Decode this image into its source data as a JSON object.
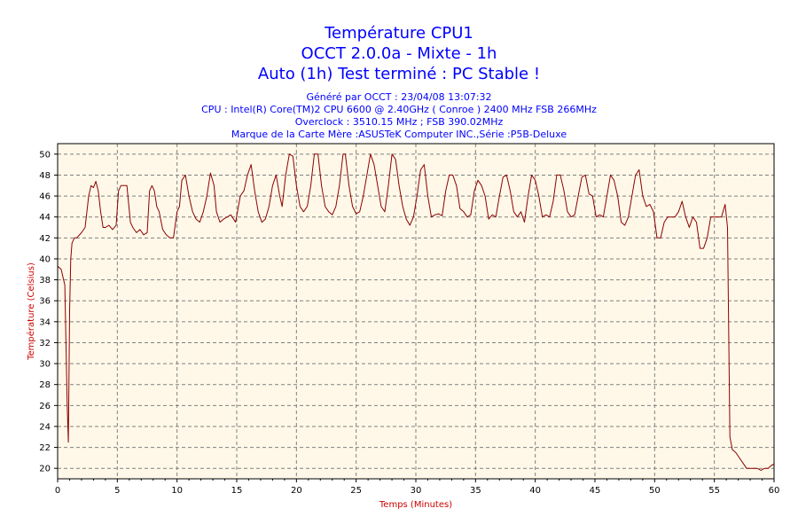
{
  "titles": [
    "Température CPU1",
    "OCCT 2.0.0a - Mixte - 1h",
    "Auto (1h) Test terminé : PC Stable !"
  ],
  "info": [
    "Généré par OCCT : 23/04/08 13:07:32",
    "CPU : Intel(R) Core(TM)2 CPU 6600 @ 2.40GHz ( Conroe ) 2400 MHz FSB 266MHz",
    "Overclock : 3510.15 MHz ; FSB 390.02MHz",
    "Marque de la Carte Mère :ASUSTeK Computer INC.,Série :P5B-Deluxe"
  ],
  "colors": {
    "title": "#0000ff",
    "plot_bg": "#fff8e8",
    "line": "#8b0000",
    "axis_label": "#cc0000",
    "grid": "#808080"
  },
  "chart_data": {
    "type": "line",
    "xlabel": "Temps (Minutes)",
    "ylabel": "Température (Celsius)",
    "xlim": [
      0,
      60
    ],
    "ylim": [
      19,
      51
    ],
    "xticks": [
      0,
      5,
      10,
      15,
      20,
      25,
      30,
      35,
      40,
      45,
      50,
      55,
      60
    ],
    "yticks": [
      20,
      22,
      24,
      26,
      28,
      30,
      32,
      34,
      36,
      38,
      40,
      42,
      44,
      46,
      48,
      50
    ],
    "grid": true,
    "series": [
      {
        "x": [
          0,
          0.3,
          0.6,
          0.8,
          0.9,
          1.0,
          1.1,
          1.2,
          1.4,
          1.6,
          2.0,
          2.3,
          2.6,
          2.8,
          3.0,
          3.2,
          3.4,
          3.6,
          3.8,
          4.0,
          4.3,
          4.6,
          4.9,
          5.1,
          5.3,
          5.5,
          5.8,
          6.1,
          6.3,
          6.6,
          6.9,
          7.2,
          7.5,
          7.7,
          7.9,
          8.1,
          8.3,
          8.5,
          8.8,
          9.1,
          9.4,
          9.7,
          10.0,
          10.2,
          10.4,
          10.7,
          11.0,
          11.3,
          11.6,
          11.9,
          12.2,
          12.5,
          12.8,
          13.1,
          13.3,
          13.6,
          13.9,
          14.2,
          14.5,
          14.9,
          15.3,
          15.6,
          15.9,
          16.2,
          16.5,
          16.8,
          17.1,
          17.4,
          17.7,
          18.0,
          18.3,
          18.6,
          18.8,
          19.1,
          19.4,
          19.7,
          20.0,
          20.3,
          20.6,
          20.9,
          21.2,
          21.5,
          21.8,
          22.1,
          22.4,
          22.7,
          23.0,
          23.3,
          23.6,
          23.9,
          24.1,
          24.4,
          24.7,
          25.0,
          25.3,
          25.6,
          25.9,
          26.2,
          26.5,
          26.8,
          27.1,
          27.4,
          27.7,
          28.0,
          28.3,
          28.6,
          28.9,
          29.2,
          29.5,
          29.8,
          30.1,
          30.4,
          30.7,
          31.0,
          31.3,
          31.6,
          31.9,
          32.2,
          32.5,
          32.8,
          33.1,
          33.4,
          33.7,
          34.0,
          34.3,
          34.6,
          34.9,
          35.2,
          35.5,
          35.8,
          36.1,
          36.4,
          36.7,
          37.0,
          37.3,
          37.6,
          37.9,
          38.2,
          38.5,
          38.8,
          39.1,
          39.4,
          39.7,
          40.0,
          40.3,
          40.6,
          40.9,
          41.2,
          41.5,
          41.8,
          42.1,
          42.4,
          42.7,
          43.0,
          43.3,
          43.6,
          43.9,
          44.2,
          44.5,
          44.8,
          45.1,
          45.4,
          45.7,
          46.0,
          46.3,
          46.6,
          46.9,
          47.2,
          47.5,
          47.8,
          48.1,
          48.4,
          48.7,
          49.0,
          49.3,
          49.6,
          49.9,
          50.2,
          50.5,
          50.8,
          51.1,
          51.4,
          51.7,
          52.0,
          52.3,
          52.6,
          52.9,
          53.2,
          53.5,
          53.8,
          54.1,
          54.4,
          54.7,
          55.0,
          55.3,
          55.6,
          55.9,
          56.1,
          56.3,
          56.5,
          56.8,
          57.1,
          57.4,
          57.7,
          58.0,
          58.3,
          58.6,
          58.9,
          59.2,
          59.5,
          59.8,
          60.0
        ],
        "y": [
          39.3,
          39,
          37.5,
          26,
          22.5,
          35,
          40,
          41.5,
          42,
          42,
          42.5,
          43,
          46,
          47,
          46.8,
          47.4,
          46.5,
          44.5,
          43,
          43,
          43.2,
          42.8,
          43.2,
          46.5,
          47,
          47,
          47,
          43.5,
          43,
          42.5,
          42.8,
          42.3,
          42.5,
          46.5,
          47,
          46.5,
          45,
          44.5,
          42.8,
          42.3,
          42,
          42,
          44.5,
          45,
          47.5,
          48,
          46,
          44.5,
          43.8,
          43.5,
          44.5,
          46,
          48.2,
          47,
          44.5,
          43.5,
          43.8,
          44,
          44.2,
          43.5,
          46,
          46.5,
          48,
          49,
          46.5,
          44.5,
          43.5,
          43.8,
          45,
          47,
          48,
          46,
          45,
          48,
          50,
          49.8,
          47,
          45,
          44.5,
          45,
          47,
          50,
          50,
          47,
          45,
          44.5,
          44.2,
          45,
          47,
          50,
          50,
          47,
          45,
          44.3,
          44.5,
          46,
          48,
          50,
          49,
          47,
          45,
          44.5,
          47,
          50,
          49.5,
          47,
          45,
          43.8,
          43.2,
          44,
          46,
          48.5,
          49,
          46,
          44,
          44.2,
          44.3,
          44.1,
          46.5,
          48,
          48,
          47,
          44.8,
          44.5,
          44,
          44.2,
          46.5,
          47.5,
          47,
          46,
          43.8,
          44.2,
          44,
          46,
          47.8,
          48,
          46.5,
          44.5,
          44,
          44.5,
          43.5,
          46,
          48,
          47.5,
          46,
          44,
          44.2,
          44,
          45.5,
          48,
          48,
          46.5,
          44.5,
          44,
          44.2,
          46,
          47.8,
          48,
          46.2,
          46,
          44,
          44.2,
          44,
          46,
          48,
          47.5,
          46,
          43.5,
          43.2,
          44,
          46,
          48,
          48.5,
          46,
          45,
          45.2,
          44.5,
          42,
          42,
          43.5,
          44,
          44,
          44,
          44.5,
          45.5,
          44,
          43,
          44,
          43.5,
          41,
          41,
          42,
          44,
          44,
          44,
          44,
          45.2,
          43,
          23,
          21.8,
          21.5,
          21,
          20.5,
          20,
          20,
          20,
          20,
          19.8,
          20,
          20,
          20.3,
          20.4
        ]
      }
    ]
  }
}
